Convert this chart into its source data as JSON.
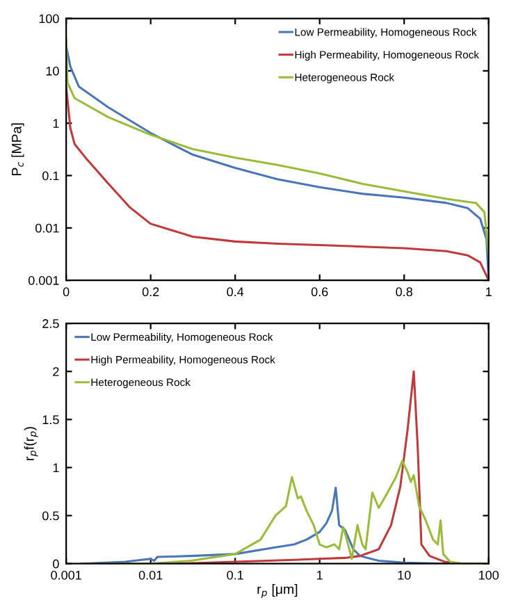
{
  "chart_data": [
    {
      "type": "line",
      "ylabel": "P$_{c}$ [MPa]",
      "log": "y",
      "xlim": [
        0,
        1
      ],
      "ylim": [
        0.001,
        100
      ],
      "xticks": [
        0,
        0.2,
        0.4,
        0.6,
        0.8,
        1
      ],
      "yticks": [
        0.001,
        0.01,
        0.1,
        1,
        10,
        100
      ],
      "legend": "top right",
      "grid": false,
      "series": [
        {
          "name": "Low Permeability, Homogeneous Rock",
          "color": "#4a76b8",
          "x": [
            0,
            0.01,
            0.03,
            0.1,
            0.2,
            0.25,
            0.3,
            0.4,
            0.5,
            0.6,
            0.7,
            0.8,
            0.9,
            0.95,
            0.98,
            0.995,
            1
          ],
          "values": [
            30,
            12,
            5,
            2,
            0.65,
            0.4,
            0.25,
            0.14,
            0.085,
            0.06,
            0.045,
            0.038,
            0.03,
            0.024,
            0.015,
            0.006,
            0.001
          ]
        },
        {
          "name": "High Permeability, Homogeneous Rock",
          "color": "#c0393b",
          "x": [
            0,
            0.005,
            0.01,
            0.02,
            0.05,
            0.1,
            0.15,
            0.2,
            0.3,
            0.4,
            0.5,
            0.6,
            0.7,
            0.8,
            0.9,
            0.95,
            0.98,
            1
          ],
          "values": [
            5,
            2,
            0.8,
            0.4,
            0.2,
            0.07,
            0.025,
            0.012,
            0.0068,
            0.0055,
            0.005,
            0.0047,
            0.0044,
            0.0041,
            0.0036,
            0.003,
            0.0022,
            0.001
          ]
        },
        {
          "name": "Heterogeneous Rock",
          "color": "#9bbb3a",
          "x": [
            0,
            0.003,
            0.02,
            0.1,
            0.2,
            0.3,
            0.4,
            0.5,
            0.6,
            0.7,
            0.8,
            0.9,
            0.97,
            0.99,
            1
          ],
          "values": [
            40,
            6,
            3,
            1.3,
            0.6,
            0.32,
            0.22,
            0.16,
            0.11,
            0.07,
            0.05,
            0.036,
            0.03,
            0.02,
            0.003
          ]
        }
      ]
    },
    {
      "type": "line",
      "xlabel": "r$_{p}$ [μm]",
      "ylabel": "r$_{p}$f(r$_{p}$)",
      "log": "x",
      "xlim": [
        0.001,
        100
      ],
      "ylim": [
        0,
        2.5
      ],
      "xticks": [
        0.001,
        0.01,
        0.1,
        1,
        10,
        100
      ],
      "yticks": [
        0,
        0.5,
        1,
        1.5,
        2,
        2.5
      ],
      "legend": "top left",
      "grid": false,
      "series": [
        {
          "name": "Low Permeability, Homogeneous Rock",
          "color": "#4a76b8",
          "x": [
            0.0015,
            0.005,
            0.01,
            0.011,
            0.012,
            0.03,
            0.1,
            0.3,
            0.5,
            0.7,
            1,
            1.2,
            1.4,
            1.55,
            1.7,
            2,
            2.5,
            3,
            5,
            10,
            30,
            100
          ],
          "values": [
            0,
            0.02,
            0.05,
            0.03,
            0.07,
            0.08,
            0.1,
            0.17,
            0.2,
            0.25,
            0.33,
            0.42,
            0.55,
            0.79,
            0.4,
            0.35,
            0.15,
            0.08,
            0.03,
            0.01,
            0,
            0
          ]
        },
        {
          "name": "High Permeability, Homogeneous Rock",
          "color": "#c0393b",
          "x": [
            0.02,
            0.1,
            0.5,
            1,
            2,
            3,
            5,
            7,
            9,
            11,
            13,
            14.5,
            16,
            20,
            30,
            50,
            100
          ],
          "values": [
            0,
            0.02,
            0.04,
            0.05,
            0.06,
            0.08,
            0.15,
            0.4,
            0.8,
            1.4,
            2.0,
            1.2,
            0.2,
            0.08,
            0.02,
            0,
            0
          ]
        },
        {
          "name": "Heterogeneous Rock",
          "color": "#9bbb3a",
          "x": [
            0.0015,
            0.01,
            0.03,
            0.1,
            0.2,
            0.3,
            0.4,
            0.47,
            0.55,
            0.6,
            0.7,
            0.85,
            1,
            1.2,
            1.5,
            1.7,
            1.9,
            2.1,
            2.4,
            2.8,
            3.2,
            3.5,
            4.2,
            5,
            6,
            8,
            9.5,
            11,
            12,
            13,
            15,
            18,
            22,
            25,
            27,
            29,
            35,
            50,
            100
          ],
          "values": [
            0,
            0,
            0.03,
            0.1,
            0.25,
            0.5,
            0.6,
            0.9,
            0.68,
            0.7,
            0.55,
            0.4,
            0.2,
            0.17,
            0.2,
            0.15,
            0.38,
            0.25,
            0.05,
            0.4,
            0.2,
            0.15,
            0.74,
            0.58,
            0.7,
            0.9,
            1.07,
            0.95,
            0.85,
            0.92,
            0.6,
            0.45,
            0.25,
            0.2,
            0.45,
            0.1,
            0.02,
            0,
            0
          ]
        }
      ]
    }
  ]
}
